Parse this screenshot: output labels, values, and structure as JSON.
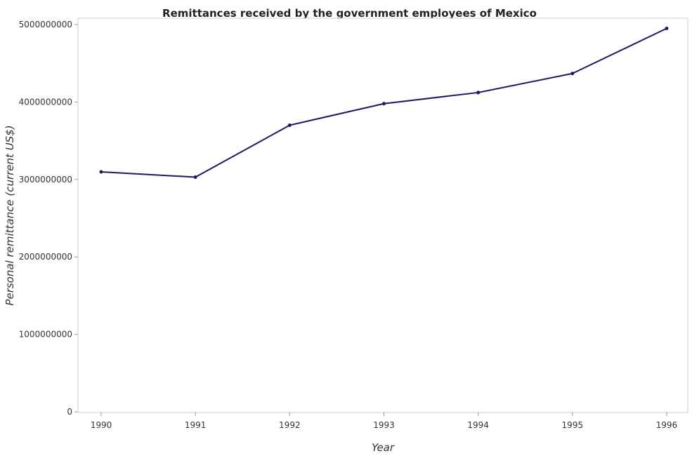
{
  "chart_data": {
    "type": "line",
    "title": "Remittances received by the government employees of Mexico",
    "xlabel": "Year",
    "ylabel": "Personal remittance (current US$)",
    "categories": [
      "1990",
      "1991",
      "1992",
      "1993",
      "1994",
      "1995",
      "1996"
    ],
    "series": [
      {
        "values": [
          3098000000,
          3030000000,
          3700000000,
          3979000000,
          4122000000,
          4368000000,
          4950000000
        ]
      }
    ],
    "ylim": [
      0,
      5000000000
    ],
    "yticks": [
      0,
      1000000000,
      2000000000,
      3000000000,
      4000000000,
      5000000000
    ],
    "ytick_labels": [
      "0",
      "1000000000",
      "2000000000",
      "3000000000",
      "4000000000",
      "5000000000"
    ],
    "grid": false,
    "line_color": "#1a1a66",
    "marker_color": "#1a1a66"
  }
}
